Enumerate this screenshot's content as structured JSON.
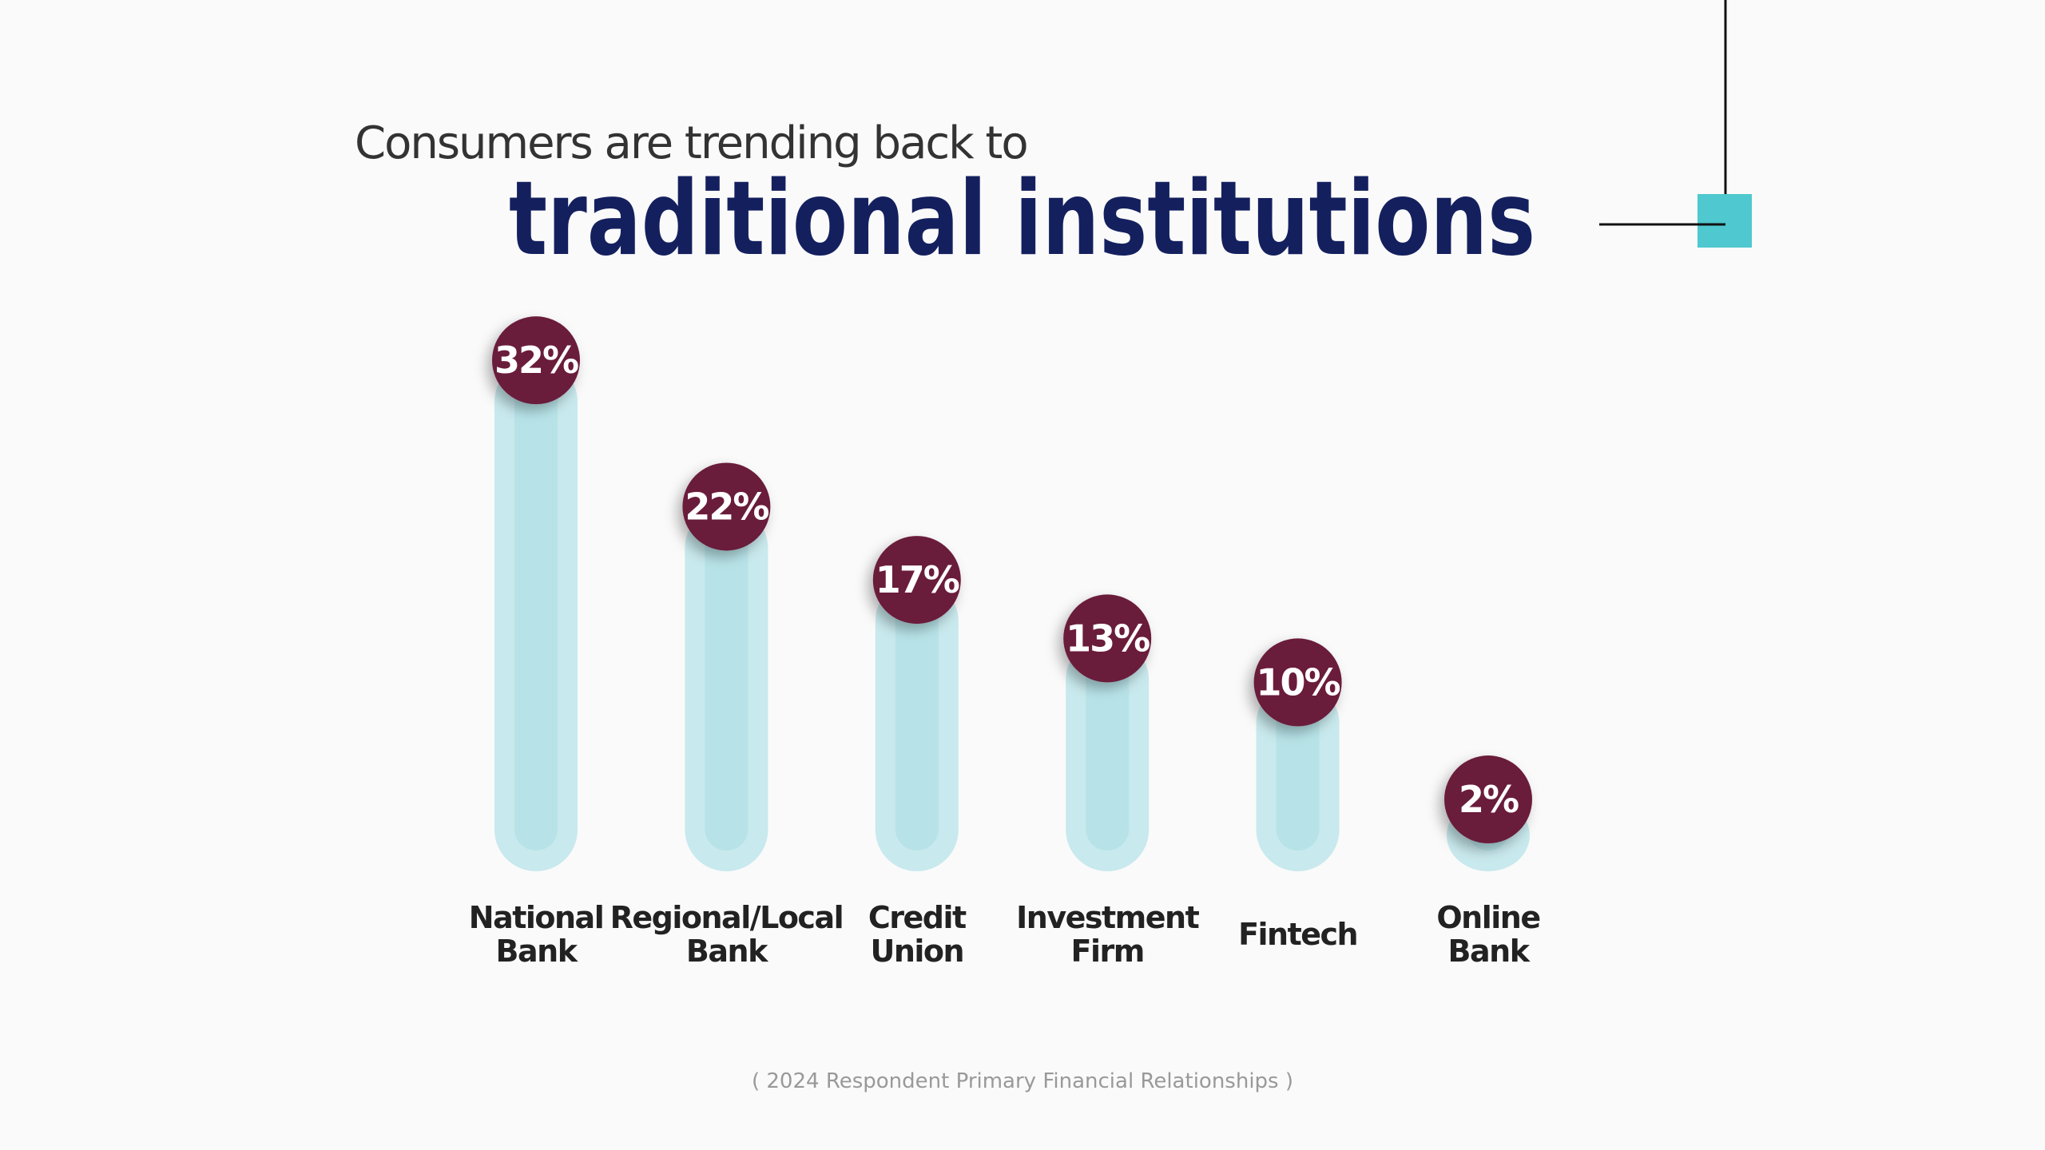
{
  "chart_data": {
    "type": "bar",
    "subtitle": "Consumers are trending back to",
    "title": "traditional institutions",
    "categories": [
      "National Bank",
      "Regional/Local Bank",
      "Credit Union",
      "Investment Firm",
      "Fintech",
      "Online Bank"
    ],
    "values": [
      32,
      22,
      17,
      13,
      10,
      2
    ],
    "value_labels": [
      "32%",
      "22%",
      "17%",
      "13%",
      "10%",
      "2%"
    ],
    "color": "#b7e3e8",
    "label_color": "#6b1d3a",
    "note": "( 2024 Respondent Primary Financial Relationships )"
  }
}
